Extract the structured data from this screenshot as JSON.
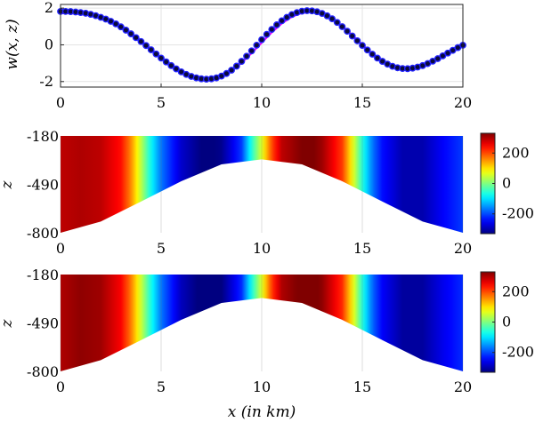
{
  "figure": {
    "xlabel": "x (in km)"
  },
  "colors": {
    "line": "#ff00ff",
    "marker_edge": "#2222ff",
    "marker_fill": "#0a0a3c",
    "colormap": "jet"
  },
  "chart_data": [
    {
      "type": "line",
      "ylabel": "w(x, z)",
      "xlim": [
        0,
        20
      ],
      "ylim": [
        -2.3,
        2.2
      ],
      "xticks": [
        "0",
        "5",
        "10",
        "15",
        "20"
      ],
      "yticks": [
        "2",
        "0",
        "-2"
      ],
      "grid": true,
      "series": [
        {
          "style": "solid magenta line",
          "x": [
            0,
            0.5,
            1,
            1.5,
            2,
            2.5,
            3,
            3.5,
            4,
            4.5,
            5,
            5.5,
            6,
            6.5,
            7,
            7.5,
            8,
            8.5,
            9,
            9.5,
            10,
            10.5,
            11,
            11.5,
            12,
            12.5,
            13,
            13.5,
            14,
            14.5,
            15,
            15.5,
            16,
            16.5,
            17,
            17.5,
            18,
            18.5,
            19,
            19.5,
            20
          ],
          "values": [
            1.72,
            1.72,
            1.68,
            1.6,
            1.46,
            1.25,
            0.98,
            0.62,
            0.22,
            -0.25,
            -0.7,
            -1.12,
            -1.47,
            -1.72,
            -1.84,
            -1.86,
            -1.72,
            -1.42,
            -0.98,
            -0.45,
            0.12,
            0.68,
            1.17,
            1.53,
            1.74,
            1.8,
            1.7,
            1.42,
            1.02,
            0.52,
            0.0,
            -0.5,
            -0.92,
            -1.2,
            -1.32,
            -1.3,
            -1.15,
            -0.88,
            -0.55,
            -0.25,
            -0.03
          ]
        },
        {
          "style": "blue circle markers",
          "x": [
            0,
            0.25,
            0.5,
            0.75,
            1,
            1.25,
            1.5,
            1.75,
            2,
            2.25,
            2.5,
            2.75,
            3,
            3.25,
            3.5,
            3.75,
            4,
            4.25,
            4.5,
            4.75,
            5,
            5.25,
            5.5,
            5.75,
            6,
            6.25,
            6.5,
            6.75,
            7,
            7.25,
            7.5,
            7.75,
            8,
            8.25,
            8.5,
            8.75,
            9,
            9.25,
            9.5,
            9.75,
            10,
            10.25,
            10.5,
            10.75,
            11,
            11.25,
            11.5,
            11.75,
            12,
            12.25,
            12.5,
            12.75,
            13,
            13.25,
            13.5,
            13.75,
            14,
            14.25,
            14.5,
            14.75,
            15,
            15.25,
            15.5,
            15.75,
            16,
            16.25,
            16.5,
            16.75,
            17,
            17.25,
            17.5,
            17.75,
            18,
            18.25,
            18.5,
            18.75,
            19,
            19.25,
            19.5,
            19.75,
            20
          ],
          "values": [
            1.82,
            1.82,
            1.81,
            1.79,
            1.76,
            1.72,
            1.66,
            1.59,
            1.5,
            1.4,
            1.28,
            1.14,
            0.98,
            0.8,
            0.6,
            0.39,
            0.18,
            -0.04,
            -0.27,
            -0.5,
            -0.72,
            -0.93,
            -1.13,
            -1.31,
            -1.47,
            -1.61,
            -1.72,
            -1.8,
            -1.85,
            -1.87,
            -1.85,
            -1.8,
            -1.7,
            -1.56,
            -1.38,
            -1.16,
            -0.9,
            -0.62,
            -0.33,
            -0.02,
            0.28,
            0.57,
            0.84,
            1.09,
            1.31,
            1.5,
            1.65,
            1.76,
            1.83,
            1.86,
            1.85,
            1.8,
            1.71,
            1.58,
            1.42,
            1.22,
            0.99,
            0.74,
            0.48,
            0.22,
            -0.03,
            -0.28,
            -0.51,
            -0.72,
            -0.9,
            -1.05,
            -1.17,
            -1.25,
            -1.29,
            -1.3,
            -1.27,
            -1.21,
            -1.13,
            -1.02,
            -0.89,
            -0.75,
            -0.6,
            -0.45,
            -0.3,
            -0.15,
            -0.02
          ]
        }
      ]
    },
    {
      "type": "heatmap",
      "ylabel": "z",
      "xlim": [
        0,
        20
      ],
      "ylim": [
        -800,
        -180
      ],
      "xticks": [
        "0",
        "5",
        "10",
        "15",
        "20"
      ],
      "yticks": [
        "-180",
        "-490",
        "-800"
      ],
      "bottom_boundary": {
        "x": [
          0,
          2,
          4,
          6,
          8,
          10,
          12,
          14,
          16,
          18,
          20
        ],
        "z": [
          -800,
          -728,
          -600,
          -470,
          -362,
          -330,
          -362,
          -470,
          -600,
          -728,
          -800
        ]
      },
      "profile": {
        "x": [
          0,
          1,
          2,
          3,
          3.5,
          4,
          4.5,
          5,
          6,
          7,
          7.5,
          8,
          9,
          9.5,
          10,
          10.5,
          11,
          12,
          12.5,
          13,
          14,
          14.5,
          15,
          15.5,
          16,
          17,
          18,
          19,
          20
        ],
        "values": [
          290,
          300,
          290,
          240,
          160,
          40,
          -80,
          -170,
          -280,
          -330,
          -335,
          -320,
          -210,
          -60,
          60,
          200,
          290,
          330,
          335,
          310,
          210,
          80,
          -60,
          -170,
          -240,
          -300,
          -300,
          -250,
          -210
        ]
      },
      "colorbar": {
        "range": [
          -330,
          330
        ],
        "ticks": [
          "200",
          "0",
          "-200"
        ]
      }
    },
    {
      "type": "heatmap",
      "ylabel": "z",
      "xlim": [
        0,
        20
      ],
      "ylim": [
        -800,
        -180
      ],
      "xticks": [
        "0",
        "5",
        "10",
        "15",
        "20"
      ],
      "yticks": [
        "-180",
        "-490",
        "-800"
      ],
      "bottom_boundary": {
        "x": [
          0,
          2,
          4,
          6,
          8,
          10,
          12,
          14,
          16,
          18,
          20
        ],
        "z": [
          -800,
          -728,
          -600,
          -470,
          -362,
          -330,
          -362,
          -470,
          -600,
          -728,
          -800
        ]
      },
      "profile": {
        "x": [
          0,
          1,
          2,
          3,
          3.5,
          4,
          4.5,
          5,
          6,
          7,
          7.5,
          8,
          9,
          9.5,
          10,
          10.5,
          11,
          12,
          12.5,
          13,
          14,
          14.5,
          15,
          15.5,
          16,
          17,
          18,
          19,
          20
        ],
        "values": [
          300,
          320,
          310,
          250,
          170,
          50,
          -70,
          -170,
          -290,
          -340,
          -345,
          -330,
          -220,
          -70,
          60,
          210,
          300,
          340,
          345,
          320,
          220,
          90,
          -60,
          -180,
          -250,
          -310,
          -310,
          -260,
          -220
        ]
      },
      "colorbar": {
        "range": [
          -330,
          330
        ],
        "ticks": [
          "200",
          "0",
          "-200"
        ]
      }
    }
  ]
}
